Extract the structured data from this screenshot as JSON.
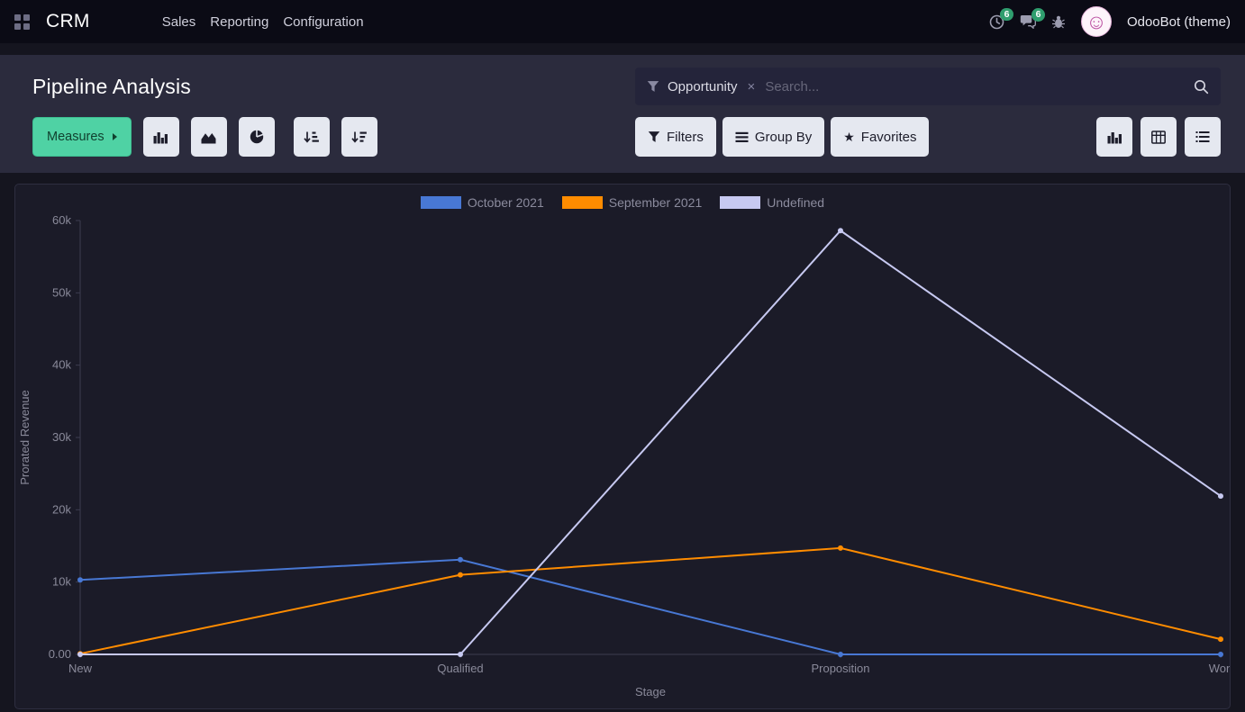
{
  "navbar": {
    "app_name": "CRM",
    "menus": [
      {
        "label": "Sales"
      },
      {
        "label": "Reporting"
      },
      {
        "label": "Configuration"
      }
    ],
    "activities_count": "6",
    "messages_count": "6",
    "user_name": "OdooBot (theme)"
  },
  "control_panel": {
    "title": "Pipeline Analysis",
    "search": {
      "facet": "Opportunity",
      "placeholder": "Search..."
    },
    "buttons": {
      "measures": "Measures",
      "filters": "Filters",
      "group_by": "Group By",
      "favorites": "Favorites"
    }
  },
  "icons": {
    "close": "×",
    "star": "★",
    "smiley": "☺"
  },
  "colors": {
    "accent_green": "#4fd2a4",
    "badge_green": "#2f9e6e",
    "series_blue": "#4878d4",
    "series_orange": "#ff8c00",
    "series_lavender": "#c7c9f1"
  },
  "chart_data": {
    "type": "line",
    "title": "",
    "xlabel": "Stage",
    "ylabel": "Prorated Revenue",
    "categories": [
      "New",
      "Qualified",
      "Proposition",
      "Won"
    ],
    "series": [
      {
        "name": "October 2021",
        "color": "#4878d4",
        "values": [
          10300,
          13100,
          0,
          0
        ]
      },
      {
        "name": "September 2021",
        "color": "#ff8c00",
        "values": [
          100,
          11000,
          14700,
          2100
        ]
      },
      {
        "name": "Undefined",
        "color": "#c7c9f1",
        "values": [
          0,
          0,
          58600,
          21900
        ]
      }
    ],
    "ylim": [
      0,
      60000
    ],
    "y_ticks": [
      "0.00",
      "10k",
      "20k",
      "30k",
      "40k",
      "50k",
      "60k"
    ],
    "grid": false,
    "legend_position": "top"
  }
}
